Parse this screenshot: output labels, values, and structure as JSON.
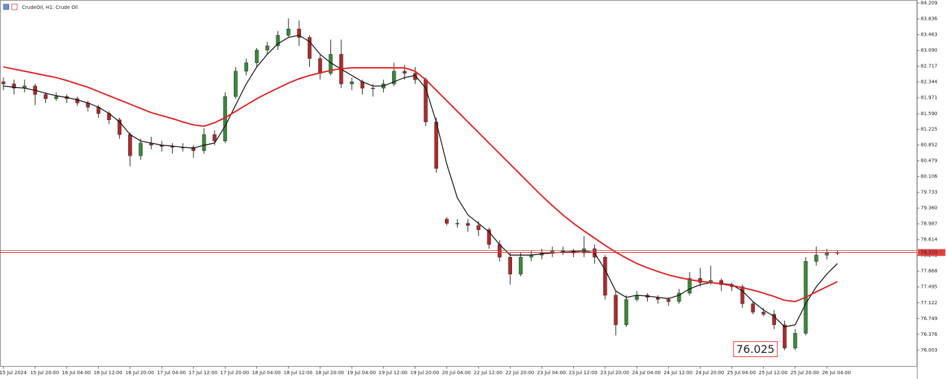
{
  "chart_data": {
    "type": "candlestick",
    "title": "CrudeOil, H1:  Crude Oil",
    "up_color": "#3a8a3a",
    "down_color": "#b02a2a",
    "ylim": [
      75.61,
      84.22
    ],
    "yticks": [
      84.209,
      83.836,
      83.463,
      {
        "value": 83.09,
        "label": "83.090"
      },
      82.717,
      82.344,
      81.971,
      {
        "value": 81.59,
        "label": "81.590"
      },
      81.225,
      80.852,
      80.479,
      80.106,
      79.733,
      {
        "value": 79.36,
        "label": "79.360"
      },
      78.987,
      78.614,
      78.241,
      77.868,
      77.495,
      77.122,
      76.749,
      76.376,
      76.003
    ],
    "xticks": [
      {
        "value": 0,
        "label": "15 Jul 2024"
      },
      {
        "value": 3,
        "label": "15 Jul 20:00"
      },
      {
        "value": 6,
        "label": "16 Jul 04:00"
      },
      {
        "value": 9,
        "label": "16 Jul 12:00"
      },
      {
        "value": 12,
        "label": "16 Jul 20:00"
      },
      {
        "value": 15,
        "label": "17 Jul 04:00"
      },
      {
        "value": 18,
        "label": "17 Jul 12:00"
      },
      {
        "value": 21,
        "label": "17 Jul 20:00"
      },
      {
        "value": 24,
        "label": "18 Jul 04:00"
      },
      {
        "value": 27,
        "label": "18 Jul 12:00"
      },
      {
        "value": 30,
        "label": "18 Jul 20:00"
      },
      {
        "value": 33,
        "label": "19 Jul 04:00"
      },
      {
        "value": 36,
        "label": "19 Jul 12:00"
      },
      {
        "value": 39,
        "label": "19 Jul 20:00"
      },
      {
        "value": 42,
        "label": "20 Jul 04:00"
      },
      {
        "value": 45,
        "label": "22 Jul 12:00"
      },
      {
        "value": 48,
        "label": "22 Jul 20:00"
      },
      {
        "value": 51,
        "label": "23 Jul 04:00"
      },
      {
        "value": 54,
        "label": "23 Jul 12:00"
      },
      {
        "value": 57,
        "label": "23 Jul 20:00"
      },
      {
        "value": 60,
        "label": "24 Jul 04:00"
      },
      {
        "value": 63,
        "label": "24 Jul 12:00"
      },
      {
        "value": 66,
        "label": "24 Jul 20:00"
      },
      {
        "value": 69,
        "label": "25 Jul 04:00"
      },
      {
        "value": 72,
        "label": "25 Jul 12:00"
      },
      {
        "value": 75,
        "label": "25 Jul 20:00"
      },
      {
        "value": 78,
        "label": "26 Jul 04:00"
      }
    ],
    "candles": [
      [
        82.35,
        82.45,
        82.15,
        82.3
      ],
      [
        82.3,
        82.4,
        82.05,
        82.2
      ],
      [
        82.2,
        82.4,
        82.1,
        82.25
      ],
      [
        82.25,
        82.3,
        81.8,
        82.05
      ],
      [
        82.05,
        82.1,
        81.85,
        81.95
      ],
      [
        81.95,
        82.1,
        81.9,
        82.0
      ],
      [
        82.0,
        82.05,
        81.85,
        81.95
      ],
      [
        81.95,
        82.0,
        81.78,
        81.85
      ],
      [
        81.85,
        81.9,
        81.65,
        81.75
      ],
      [
        81.75,
        81.8,
        81.5,
        81.6
      ],
      [
        81.6,
        81.65,
        81.35,
        81.45
      ],
      [
        81.45,
        81.5,
        81.0,
        81.1
      ],
      [
        81.1,
        81.15,
        80.35,
        80.6
      ],
      [
        80.6,
        81.0,
        80.5,
        80.9
      ],
      [
        80.9,
        81.05,
        80.75,
        80.85
      ],
      [
        80.85,
        80.95,
        80.7,
        80.82
      ],
      [
        80.82,
        80.9,
        80.65,
        80.8
      ],
      [
        80.8,
        80.9,
        80.7,
        80.8
      ],
      [
        80.8,
        80.85,
        80.55,
        80.72
      ],
      [
        80.72,
        81.25,
        80.65,
        81.1
      ],
      [
        81.1,
        81.2,
        80.85,
        80.95
      ],
      [
        80.95,
        82.1,
        80.9,
        82.0
      ],
      [
        82.0,
        82.7,
        81.95,
        82.6
      ],
      [
        82.6,
        82.9,
        82.5,
        82.8
      ],
      [
        82.8,
        83.15,
        82.7,
        83.1
      ],
      [
        83.1,
        83.3,
        83.0,
        83.2
      ],
      [
        83.2,
        83.55,
        83.1,
        83.45
      ],
      [
        83.45,
        83.85,
        83.4,
        83.6
      ],
      [
        83.6,
        83.8,
        83.2,
        83.4
      ],
      [
        83.4,
        83.45,
        82.7,
        82.9
      ],
      [
        82.9,
        83.0,
        82.4,
        82.55
      ],
      [
        82.55,
        83.35,
        82.5,
        83.0
      ],
      [
        83.0,
        83.35,
        82.2,
        82.3
      ],
      [
        82.3,
        82.45,
        82.15,
        82.35
      ],
      [
        82.35,
        82.4,
        82.05,
        82.2
      ],
      [
        82.2,
        82.3,
        82.0,
        82.2
      ],
      [
        82.2,
        82.4,
        82.1,
        82.3
      ],
      [
        82.3,
        82.8,
        82.25,
        82.6
      ],
      [
        82.6,
        82.75,
        82.4,
        82.55
      ],
      [
        82.55,
        82.7,
        82.3,
        82.4
      ],
      [
        82.4,
        82.45,
        81.3,
        81.4
      ],
      [
        81.4,
        81.5,
        80.2,
        80.3
      ],
      [
        79.1,
        79.15,
        78.95,
        79.0
      ],
      [
        79.0,
        79.1,
        78.9,
        79.0
      ],
      [
        79.0,
        79.1,
        78.8,
        78.95
      ],
      [
        78.95,
        79.05,
        78.7,
        78.85
      ],
      [
        78.85,
        78.9,
        78.4,
        78.5
      ],
      [
        78.5,
        78.6,
        78.1,
        78.2
      ],
      [
        78.2,
        78.3,
        77.55,
        77.8
      ],
      [
        77.8,
        78.3,
        77.75,
        78.2
      ],
      [
        78.2,
        78.35,
        78.1,
        78.25
      ],
      [
        78.25,
        78.4,
        78.15,
        78.3
      ],
      [
        78.3,
        78.45,
        78.2,
        78.35
      ],
      [
        78.35,
        78.45,
        78.25,
        78.35
      ],
      [
        78.35,
        78.4,
        78.2,
        78.3
      ],
      [
        78.3,
        78.7,
        78.2,
        78.4
      ],
      [
        78.4,
        78.5,
        78.05,
        78.2
      ],
      [
        78.2,
        78.25,
        77.2,
        77.3
      ],
      [
        77.3,
        77.4,
        76.35,
        76.6
      ],
      [
        76.6,
        77.3,
        76.55,
        77.2
      ],
      [
        77.2,
        77.4,
        77.15,
        77.3
      ],
      [
        77.3,
        77.35,
        77.15,
        77.25
      ],
      [
        77.25,
        77.3,
        77.1,
        77.2
      ],
      [
        77.2,
        77.25,
        77.05,
        77.15
      ],
      [
        77.15,
        77.45,
        77.1,
        77.35
      ],
      [
        77.35,
        77.85,
        77.3,
        77.7
      ],
      [
        77.7,
        77.95,
        77.5,
        77.6
      ],
      [
        77.6,
        78.0,
        77.55,
        77.65
      ],
      [
        77.65,
        77.7,
        77.4,
        77.55
      ],
      [
        77.55,
        77.6,
        77.4,
        77.5
      ],
      [
        77.5,
        77.55,
        77.0,
        77.1
      ],
      [
        77.1,
        77.15,
        76.85,
        76.9
      ],
      [
        76.9,
        77.0,
        76.8,
        76.85
      ],
      [
        76.85,
        76.95,
        76.5,
        76.6
      ],
      [
        76.6,
        76.7,
        76.0,
        76.05
      ],
      [
        76.05,
        76.5,
        76.0,
        76.4
      ],
      [
        76.4,
        78.2,
        76.35,
        78.1
      ],
      [
        78.1,
        78.45,
        78.0,
        78.25
      ],
      [
        78.25,
        78.4,
        78.15,
        78.3
      ],
      [
        78.3,
        78.36,
        78.25,
        78.31
      ]
    ],
    "series": [
      {
        "color": "#111111",
        "values": [
          82.25,
          82.22,
          82.2,
          82.15,
          82.08,
          82.02,
          81.98,
          81.92,
          81.85,
          81.75,
          81.6,
          81.4,
          81.1,
          80.95,
          80.9,
          80.85,
          80.83,
          80.8,
          80.78,
          80.85,
          80.9,
          81.3,
          81.8,
          82.3,
          82.7,
          83.0,
          83.25,
          83.4,
          83.45,
          83.3,
          83.0,
          82.8,
          82.65,
          82.5,
          82.35,
          82.25,
          82.25,
          82.35,
          82.45,
          82.5,
          82.2,
          81.4,
          80.4,
          79.6,
          79.2,
          79.0,
          78.8,
          78.5,
          78.25,
          78.25,
          78.25,
          78.28,
          78.3,
          78.32,
          78.33,
          78.35,
          78.3,
          77.9,
          77.4,
          77.25,
          77.3,
          77.28,
          77.25,
          77.22,
          77.3,
          77.45,
          77.55,
          77.6,
          77.58,
          77.55,
          77.4,
          77.15,
          76.95,
          76.8,
          76.55,
          76.6,
          77.1,
          77.5,
          77.8,
          78.05
        ]
      },
      {
        "color": "#e02020",
        "values": [
          82.7,
          82.65,
          82.6,
          82.55,
          82.5,
          82.45,
          82.38,
          82.3,
          82.22,
          82.12,
          82.02,
          81.92,
          81.82,
          81.72,
          81.62,
          81.55,
          81.48,
          81.4,
          81.33,
          81.3,
          81.38,
          81.5,
          81.65,
          81.8,
          81.95,
          82.08,
          82.2,
          82.32,
          82.42,
          82.5,
          82.56,
          82.62,
          82.66,
          82.68,
          82.68,
          82.68,
          82.68,
          82.68,
          82.68,
          82.6,
          82.4,
          82.15,
          81.9,
          81.65,
          81.4,
          81.15,
          80.9,
          80.65,
          80.4,
          80.15,
          79.9,
          79.65,
          79.42,
          79.2,
          79.0,
          78.82,
          78.65,
          78.48,
          78.32,
          78.18,
          78.05,
          77.95,
          77.86,
          77.78,
          77.72,
          77.67,
          77.63,
          77.6,
          77.57,
          77.53,
          77.48,
          77.42,
          77.35,
          77.27,
          77.18,
          77.15,
          77.25,
          77.38,
          77.5,
          77.62
        ]
      }
    ],
    "current_price": {
      "value": 78.31,
      "label": "78.310"
    },
    "annotation": 76.025
  }
}
